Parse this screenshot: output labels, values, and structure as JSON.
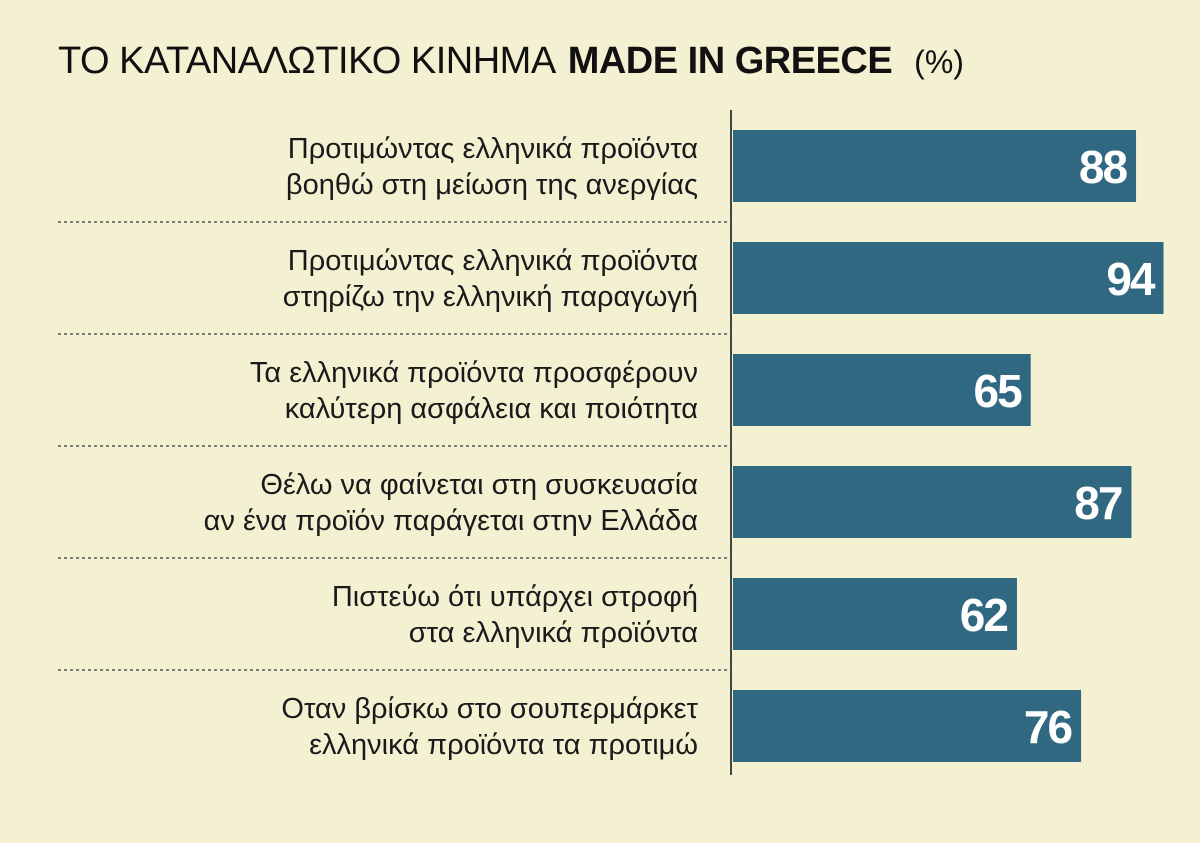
{
  "title": {
    "regular": "ΤΟ ΚΑΤΑΝΑΛΩΤΙΚΟ ΚΙΝΗΜΑ",
    "bold": "MADE IN GREECE",
    "unit": "(%)"
  },
  "colors": {
    "background": "#f4f1d3",
    "bar": "#2f6880",
    "value_text": "#ffffff",
    "divider": "#555555"
  },
  "chart_data": {
    "type": "bar",
    "orientation": "horizontal",
    "title": "ΤΟ ΚΑΤΑΝΑΛΩΤΙΚΟ ΚΙΝΗΜΑ MADE IN GREECE (%)",
    "xlabel": "",
    "ylabel": "",
    "xlim": [
      0,
      100
    ],
    "grid": false,
    "legend": "none",
    "categories": [
      [
        "Προτιμώντας ελληνικά προϊόντα",
        "βοηθώ στη μείωση της ανεργίας"
      ],
      [
        "Προτιμώντας ελληνικά προϊόντα",
        "στηρίζω την ελληνική παραγωγή"
      ],
      [
        "Τα ελληνικά προϊόντα προσφέρουν",
        "καλύτερη ασφάλεια και ποιότητα"
      ],
      [
        "Θέλω να φαίνεται στη συσκευασία",
        "αν ένα προϊόν παράγεται στην Ελλάδα"
      ],
      [
        "Πιστεύω ότι υπάρχει στροφή",
        "στα ελληνικά προϊόντα"
      ],
      [
        "Οταν βρίσκω στο σουπερμάρκετ",
        "ελληνικά προϊόντα τα προτιμώ"
      ]
    ],
    "values": [
      88,
      94,
      65,
      87,
      62,
      76
    ]
  }
}
